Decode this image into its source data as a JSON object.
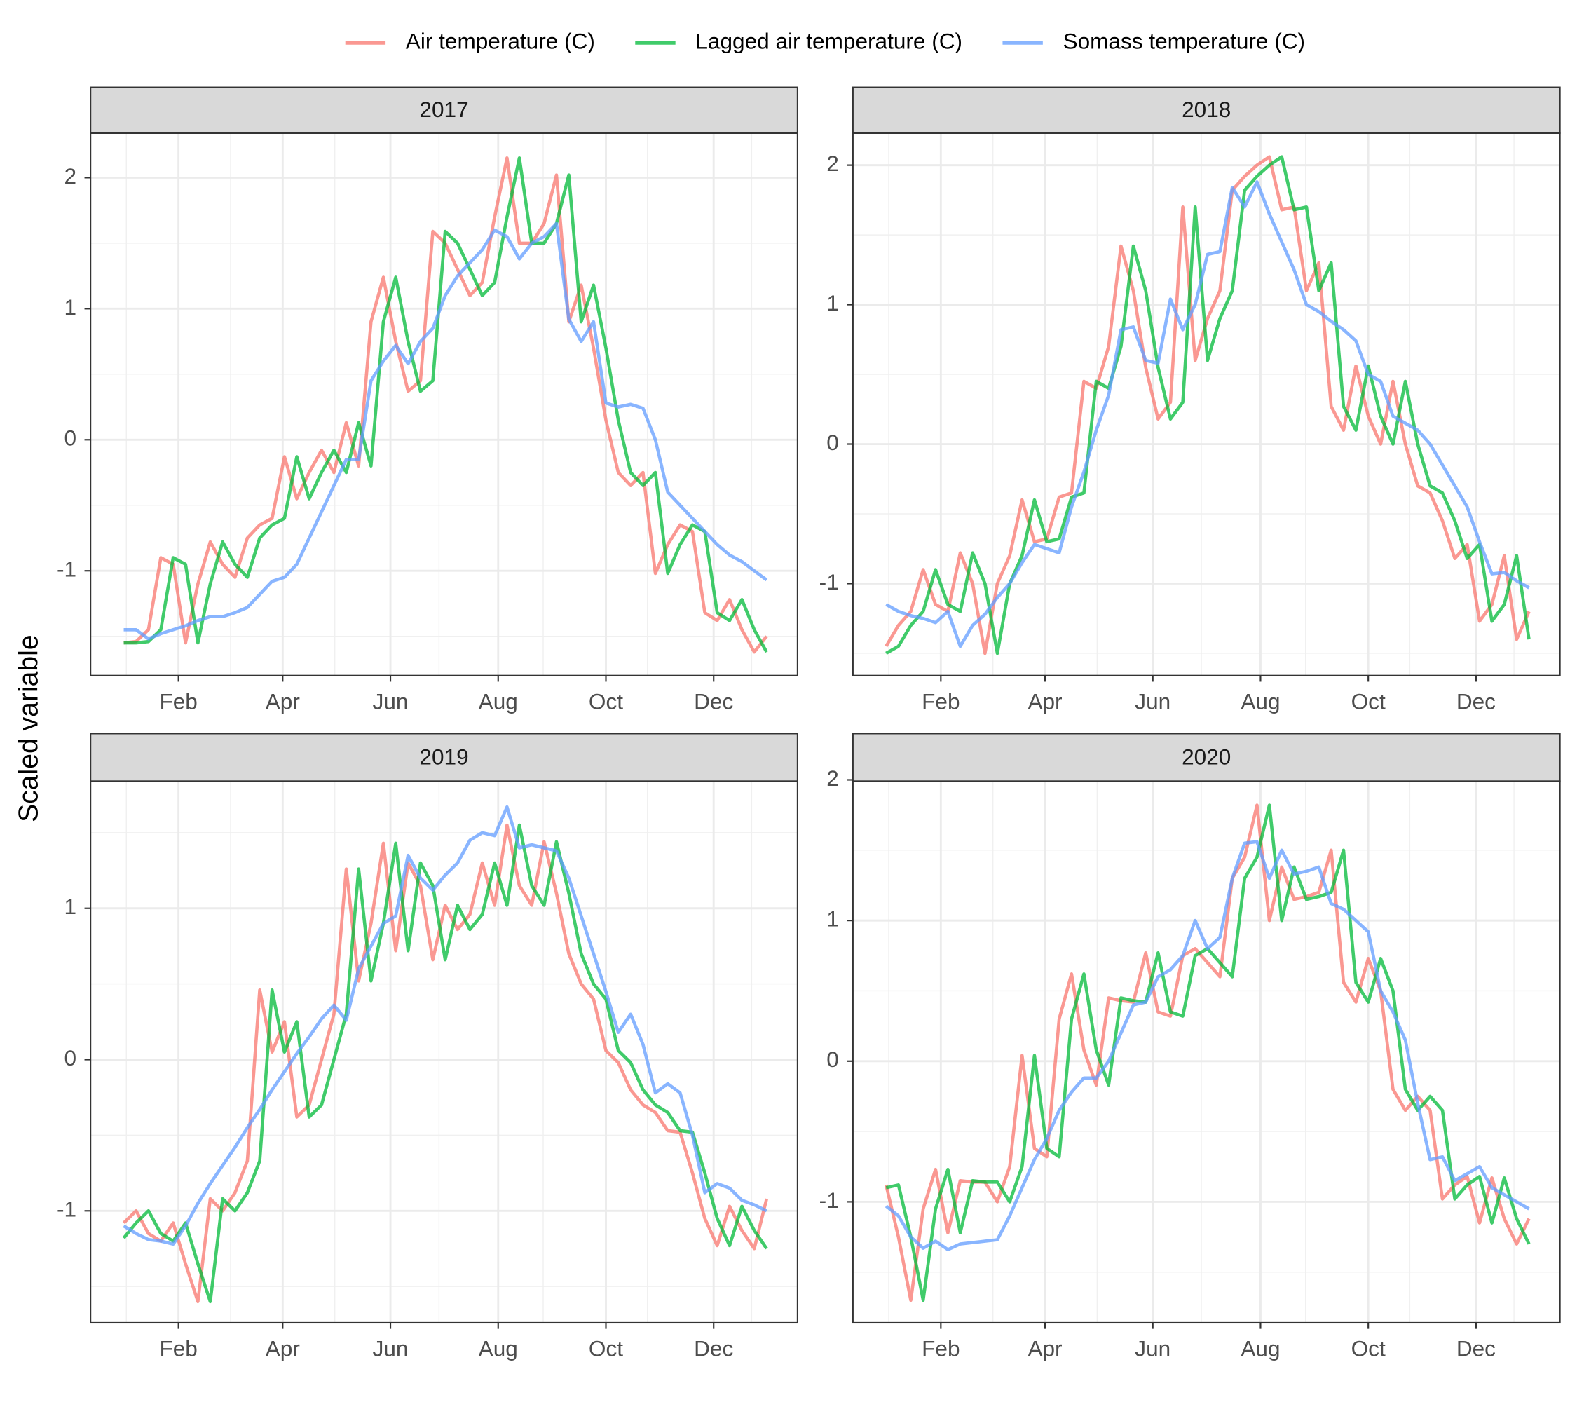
{
  "ylabel": "Scaled variable",
  "legend": "top",
  "chart_data": [
    {
      "type": "line",
      "title": "2017",
      "grid": true,
      "x": [
        1,
        8,
        15,
        22,
        29,
        36,
        43,
        50,
        57,
        64,
        71,
        78,
        85,
        92,
        99,
        106,
        113,
        120,
        127,
        134,
        141,
        148,
        155,
        162,
        169,
        176,
        183,
        190,
        197,
        204,
        211,
        218,
        225,
        232,
        239,
        246,
        253,
        260,
        267,
        274,
        281,
        288,
        295,
        302,
        309,
        316,
        323,
        330,
        337,
        344,
        351,
        358,
        365
      ],
      "xlim": [
        -17.8,
        382.5
      ],
      "ylim": [
        -1.8,
        2.34
      ],
      "xticks": [
        {
          "value": 32,
          "label": "Feb"
        },
        {
          "value": 91,
          "label": "Apr"
        },
        {
          "value": 152,
          "label": "Jun"
        },
        {
          "value": 213,
          "label": "Aug"
        },
        {
          "value": 274,
          "label": "Oct"
        },
        {
          "value": 335,
          "label": "Dec"
        }
      ],
      "yticks": [
        -1,
        0,
        1,
        2
      ],
      "series": [
        {
          "name": "Air temperature (C)",
          "color": "#F8766D",
          "values": [
            -1.55,
            -1.54,
            -1.45,
            -0.9,
            -0.95,
            -1.55,
            -1.1,
            -0.78,
            -0.95,
            -1.05,
            -0.75,
            -0.65,
            -0.6,
            -0.13,
            -0.45,
            -0.25,
            -0.08,
            -0.25,
            0.13,
            -0.2,
            0.9,
            1.24,
            0.75,
            0.37,
            0.45,
            1.59,
            1.5,
            1.3,
            1.1,
            1.2,
            1.7,
            2.15,
            1.5,
            1.5,
            1.65,
            2.02,
            0.9,
            1.18,
            0.7,
            0.15,
            -0.25,
            -0.35,
            -0.25,
            -1.02,
            -0.8,
            -0.65,
            -0.7,
            -1.32,
            -1.38,
            -1.22,
            -1.45,
            -1.62,
            -1.5
          ]
        },
        {
          "name": "Lagged air temperature (C)",
          "color": "#00BA38",
          "values": [
            -1.55,
            -1.55,
            -1.54,
            -1.45,
            -0.9,
            -0.95,
            -1.55,
            -1.1,
            -0.78,
            -0.95,
            -1.05,
            -0.75,
            -0.65,
            -0.6,
            -0.13,
            -0.45,
            -0.25,
            -0.08,
            -0.25,
            0.13,
            -0.2,
            0.9,
            1.24,
            0.75,
            0.37,
            0.45,
            1.59,
            1.5,
            1.3,
            1.1,
            1.2,
            1.7,
            2.15,
            1.5,
            1.5,
            1.65,
            2.02,
            0.9,
            1.18,
            0.7,
            0.15,
            -0.25,
            -0.35,
            -0.25,
            -1.02,
            -0.8,
            -0.65,
            -0.7,
            -1.32,
            -1.38,
            -1.22,
            -1.45,
            -1.62
          ]
        },
        {
          "name": "Somass temperature (C)",
          "color": "#619CFF",
          "values": [
            -1.45,
            -1.45,
            -1.52,
            -1.48,
            -1.45,
            -1.42,
            -1.38,
            -1.35,
            -1.35,
            -1.32,
            -1.28,
            -1.18,
            -1.08,
            -1.05,
            -0.95,
            -0.75,
            -0.55,
            -0.35,
            -0.15,
            -0.15,
            0.45,
            0.6,
            0.72,
            0.58,
            0.75,
            0.85,
            1.1,
            1.25,
            1.35,
            1.45,
            1.6,
            1.55,
            1.38,
            1.5,
            1.55,
            1.65,
            0.92,
            0.75,
            0.9,
            0.28,
            0.25,
            0.27,
            0.24,
            0.0,
            -0.4,
            -0.5,
            -0.6,
            -0.7,
            -0.8,
            -0.88,
            -0.93,
            -1.0,
            -1.07
          ]
        }
      ]
    },
    {
      "type": "line",
      "title": "2018",
      "grid": true,
      "x": [
        1,
        8,
        15,
        22,
        29,
        36,
        43,
        50,
        57,
        64,
        71,
        78,
        85,
        92,
        99,
        106,
        113,
        120,
        127,
        134,
        141,
        148,
        155,
        162,
        169,
        176,
        183,
        190,
        197,
        204,
        211,
        218,
        225,
        232,
        239,
        246,
        253,
        260,
        267,
        274,
        281,
        288,
        295,
        302,
        309,
        316,
        323,
        330,
        337,
        344,
        351,
        358,
        365
      ],
      "xlim": [
        -17.8,
        382.5
      ],
      "ylim": [
        -1.66,
        2.23
      ],
      "xticks": [
        {
          "value": 32,
          "label": "Feb"
        },
        {
          "value": 91,
          "label": "Apr"
        },
        {
          "value": 152,
          "label": "Jun"
        },
        {
          "value": 213,
          "label": "Aug"
        },
        {
          "value": 274,
          "label": "Oct"
        },
        {
          "value": 335,
          "label": "Dec"
        }
      ],
      "yticks": [
        -1,
        0,
        1,
        2
      ],
      "series": [
        {
          "color": "#F8766D",
          "values": [
            -1.45,
            -1.3,
            -1.2,
            -0.9,
            -1.15,
            -1.2,
            -0.78,
            -1.0,
            -1.5,
            -1.0,
            -0.8,
            -0.4,
            -0.7,
            -0.68,
            -0.38,
            -0.35,
            0.45,
            0.4,
            0.7,
            1.42,
            1.1,
            0.55,
            0.18,
            0.3,
            1.7,
            0.6,
            0.9,
            1.1,
            1.82,
            1.92,
            2.0,
            2.06,
            1.68,
            1.7,
            1.1,
            1.3,
            0.27,
            0.1,
            0.56,
            0.2,
            0.0,
            0.45,
            0.0,
            -0.3,
            -0.35,
            -0.55,
            -0.82,
            -0.72,
            -1.27,
            -1.15,
            -0.8,
            -1.4,
            -1.2
          ]
        },
        {
          "color": "#00BA38",
          "values": [
            -1.5,
            -1.45,
            -1.3,
            -1.2,
            -0.9,
            -1.15,
            -1.2,
            -0.78,
            -1.0,
            -1.5,
            -1.0,
            -0.8,
            -0.4,
            -0.7,
            -0.68,
            -0.38,
            -0.35,
            0.45,
            0.4,
            0.7,
            1.42,
            1.1,
            0.55,
            0.18,
            0.3,
            1.7,
            0.6,
            0.9,
            1.1,
            1.82,
            1.92,
            2.0,
            2.06,
            1.68,
            1.7,
            1.1,
            1.3,
            0.27,
            0.1,
            0.56,
            0.2,
            0.0,
            0.45,
            0.0,
            -0.3,
            -0.35,
            -0.55,
            -0.82,
            -0.72,
            -1.27,
            -1.15,
            -0.8,
            -1.4
          ]
        },
        {
          "color": "#619CFF",
          "values": [
            -1.15,
            -1.2,
            -1.23,
            -1.25,
            -1.28,
            -1.2,
            -1.45,
            -1.3,
            -1.22,
            -1.1,
            -1.0,
            -0.85,
            -0.72,
            -0.75,
            -0.78,
            -0.45,
            -0.2,
            0.1,
            0.35,
            0.82,
            0.84,
            0.6,
            0.58,
            1.04,
            0.82,
            1.0,
            1.36,
            1.38,
            1.84,
            1.7,
            1.88,
            1.65,
            1.45,
            1.25,
            1.0,
            0.95,
            0.88,
            0.82,
            0.74,
            0.5,
            0.45,
            0.2,
            0.15,
            0.1,
            0.0,
            -0.15,
            -0.3,
            -0.45,
            -0.7,
            -0.93,
            -0.92,
            -0.98,
            -1.03
          ]
        }
      ]
    },
    {
      "type": "line",
      "title": "2019",
      "grid": true,
      "x": [
        1,
        8,
        15,
        22,
        29,
        36,
        43,
        50,
        57,
        64,
        71,
        78,
        85,
        92,
        99,
        106,
        113,
        120,
        127,
        134,
        141,
        148,
        155,
        162,
        169,
        176,
        183,
        190,
        197,
        204,
        211,
        218,
        225,
        232,
        239,
        246,
        253,
        260,
        267,
        274,
        281,
        288,
        295,
        302,
        309,
        316,
        323,
        330,
        337,
        344,
        351,
        358,
        365
      ],
      "xlim": [
        -17.8,
        382.5
      ],
      "ylim": [
        -1.74,
        1.84
      ],
      "xticks": [
        {
          "value": 32,
          "label": "Feb"
        },
        {
          "value": 91,
          "label": "Apr"
        },
        {
          "value": 152,
          "label": "Jun"
        },
        {
          "value": 213,
          "label": "Aug"
        },
        {
          "value": 274,
          "label": "Oct"
        },
        {
          "value": 335,
          "label": "Dec"
        }
      ],
      "yticks": [
        -1,
        0,
        1
      ],
      "series": [
        {
          "color": "#F8766D",
          "values": [
            -1.08,
            -1.0,
            -1.15,
            -1.2,
            -1.08,
            -1.35,
            -1.6,
            -0.92,
            -1.0,
            -0.88,
            -0.67,
            0.46,
            0.05,
            0.25,
            -0.38,
            -0.3,
            0.0,
            0.3,
            1.26,
            0.52,
            0.9,
            1.43,
            0.72,
            1.3,
            1.15,
            0.66,
            1.02,
            0.86,
            0.96,
            1.3,
            1.02,
            1.55,
            1.15,
            1.02,
            1.44,
            1.1,
            0.7,
            0.5,
            0.4,
            0.06,
            -0.02,
            -0.2,
            -0.3,
            -0.35,
            -0.47,
            -0.48,
            -0.75,
            -1.05,
            -1.23,
            -0.97,
            -1.13,
            -1.25,
            -0.92
          ]
        },
        {
          "color": "#00BA38",
          "values": [
            -1.18,
            -1.08,
            -1.0,
            -1.15,
            -1.2,
            -1.08,
            -1.35,
            -1.6,
            -0.92,
            -1.0,
            -0.88,
            -0.67,
            0.46,
            0.05,
            0.25,
            -0.38,
            -0.3,
            0.0,
            0.3,
            1.26,
            0.52,
            0.9,
            1.43,
            0.72,
            1.3,
            1.15,
            0.66,
            1.02,
            0.86,
            0.96,
            1.3,
            1.02,
            1.55,
            1.15,
            1.02,
            1.44,
            1.1,
            0.7,
            0.5,
            0.4,
            0.06,
            -0.02,
            -0.2,
            -0.3,
            -0.35,
            -0.47,
            -0.48,
            -0.75,
            -1.05,
            -1.23,
            -0.97,
            -1.13,
            -1.25
          ]
        },
        {
          "color": "#619CFF",
          "values": [
            -1.1,
            -1.15,
            -1.19,
            -1.2,
            -1.22,
            -1.1,
            -0.95,
            -0.82,
            -0.7,
            -0.58,
            -0.45,
            -0.33,
            -0.2,
            -0.08,
            0.04,
            0.15,
            0.27,
            0.36,
            0.26,
            0.6,
            0.75,
            0.9,
            0.95,
            1.35,
            1.2,
            1.12,
            1.22,
            1.3,
            1.45,
            1.5,
            1.48,
            1.67,
            1.4,
            1.42,
            1.4,
            1.38,
            1.2,
            0.95,
            0.7,
            0.45,
            0.18,
            0.3,
            0.1,
            -0.22,
            -0.16,
            -0.22,
            -0.5,
            -0.88,
            -0.82,
            -0.85,
            -0.93,
            -0.96,
            -1.0
          ]
        }
      ]
    },
    {
      "type": "line",
      "title": "2020",
      "grid": true,
      "x": [
        1,
        8,
        15,
        22,
        29,
        36,
        43,
        50,
        57,
        64,
        71,
        78,
        85,
        92,
        99,
        106,
        113,
        120,
        127,
        134,
        141,
        148,
        155,
        162,
        169,
        176,
        183,
        190,
        197,
        204,
        211,
        218,
        225,
        232,
        239,
        246,
        253,
        260,
        267,
        274,
        281,
        288,
        295,
        302,
        309,
        316,
        323,
        330,
        337,
        344,
        351,
        358,
        365
      ],
      "xlim": [
        -17.8,
        382.5
      ],
      "ylim": [
        -1.86,
        1.99
      ],
      "xticks": [
        {
          "value": 32,
          "label": "Feb"
        },
        {
          "value": 91,
          "label": "Apr"
        },
        {
          "value": 152,
          "label": "Jun"
        },
        {
          "value": 213,
          "label": "Aug"
        },
        {
          "value": 274,
          "label": "Oct"
        },
        {
          "value": 335,
          "label": "Dec"
        }
      ],
      "yticks": [
        -1,
        0,
        1,
        2
      ],
      "series": [
        {
          "color": "#F8766D",
          "values": [
            -0.88,
            -1.25,
            -1.7,
            -1.05,
            -0.77,
            -1.22,
            -0.85,
            -0.86,
            -0.86,
            -1.0,
            -0.75,
            0.04,
            -0.62,
            -0.68,
            0.3,
            0.62,
            0.08,
            -0.17,
            0.45,
            0.43,
            0.42,
            0.77,
            0.35,
            0.32,
            0.75,
            0.8,
            0.7,
            0.6,
            1.3,
            1.45,
            1.82,
            1.0,
            1.38,
            1.15,
            1.17,
            1.2,
            1.5,
            0.56,
            0.42,
            0.73,
            0.5,
            -0.2,
            -0.35,
            -0.25,
            -0.35,
            -0.98,
            -0.88,
            -0.82,
            -1.15,
            -0.83,
            -1.12,
            -1.3,
            -1.12
          ]
        },
        {
          "color": "#00BA38",
          "values": [
            -0.9,
            -0.88,
            -1.25,
            -1.7,
            -1.05,
            -0.77,
            -1.22,
            -0.85,
            -0.86,
            -0.86,
            -1.0,
            -0.75,
            0.04,
            -0.62,
            -0.68,
            0.3,
            0.62,
            0.08,
            -0.17,
            0.45,
            0.43,
            0.42,
            0.77,
            0.35,
            0.32,
            0.75,
            0.8,
            0.7,
            0.6,
            1.3,
            1.45,
            1.82,
            1.0,
            1.38,
            1.15,
            1.17,
            1.2,
            1.5,
            0.56,
            0.42,
            0.73,
            0.5,
            -0.2,
            -0.35,
            -0.25,
            -0.35,
            -0.98,
            -0.88,
            -0.82,
            -1.15,
            -0.83,
            -1.12,
            -1.3
          ]
        },
        {
          "color": "#619CFF",
          "values": [
            -1.03,
            -1.1,
            -1.25,
            -1.33,
            -1.28,
            -1.34,
            -1.3,
            -1.29,
            -1.28,
            -1.27,
            -1.1,
            -0.9,
            -0.7,
            -0.55,
            -0.35,
            -0.22,
            -0.12,
            -0.12,
            0.0,
            0.2,
            0.4,
            0.42,
            0.6,
            0.65,
            0.75,
            1.0,
            0.8,
            0.88,
            1.3,
            1.55,
            1.56,
            1.3,
            1.5,
            1.33,
            1.35,
            1.38,
            1.12,
            1.08,
            1.0,
            0.92,
            0.5,
            0.35,
            0.15,
            -0.3,
            -0.7,
            -0.68,
            -0.85,
            -0.8,
            -0.75,
            -0.9,
            -0.95,
            -1.0,
            -1.05
          ]
        }
      ]
    }
  ]
}
